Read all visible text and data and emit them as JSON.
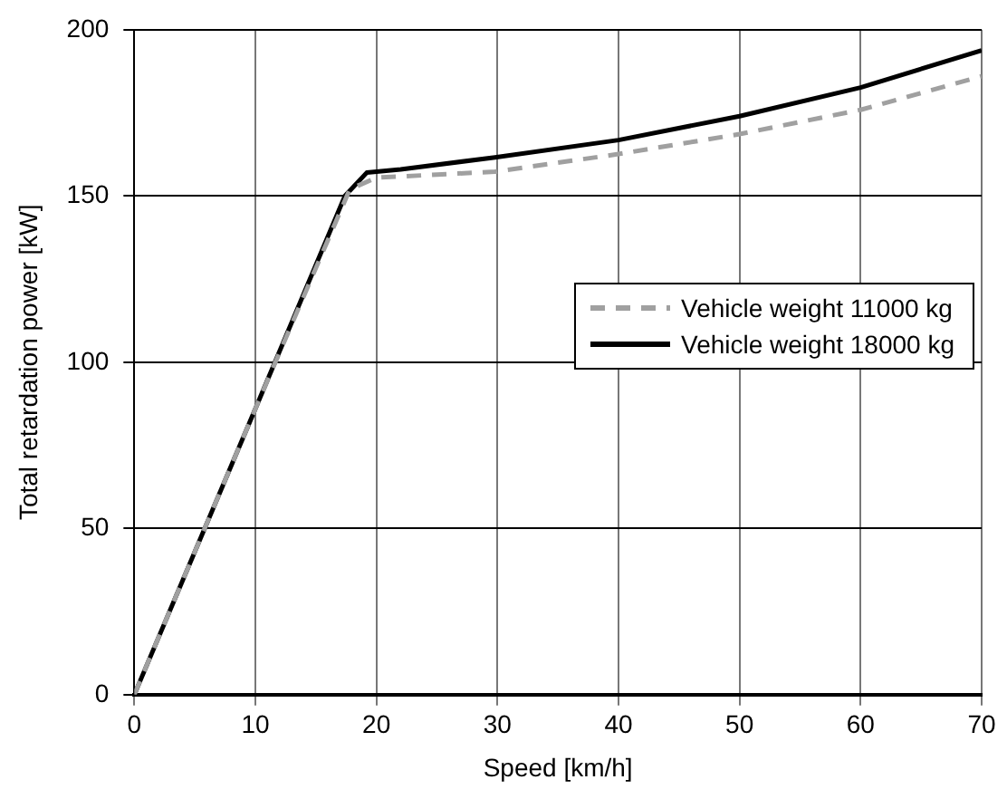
{
  "chart_data": {
    "type": "line",
    "xlabel": "Speed [km/h]",
    "ylabel": "Total retardation power [kW]",
    "xlim": [
      0,
      70
    ],
    "xticks": [
      0,
      10,
      20,
      30,
      40,
      50,
      60,
      70
    ],
    "ylim": [
      0,
      200
    ],
    "yticks": [
      0,
      50,
      100,
      150,
      200
    ],
    "grid": true,
    "legend": "right",
    "marker": "none",
    "series": [
      {
        "name": "Vehicle weight 11000 kg",
        "color": "#a0a0a0",
        "line_style": "dashed",
        "x": [
          0,
          10,
          17.8,
          20,
          29.8,
          40,
          50,
          60,
          70
        ],
        "values": [
          0,
          86,
          152,
          155.5,
          157.3,
          162.6,
          168.6,
          175.9,
          186
        ]
      },
      {
        "name": "Vehicle weight 18000 kg",
        "color": "#000000",
        "line_style": "solid",
        "x": [
          0,
          10,
          17.4,
          19.2,
          22,
          29.8,
          40,
          50,
          60,
          70
        ],
        "values": [
          0,
          86,
          150,
          157,
          158,
          161.6,
          166.8,
          174,
          182.6,
          193.8
        ]
      }
    ]
  }
}
